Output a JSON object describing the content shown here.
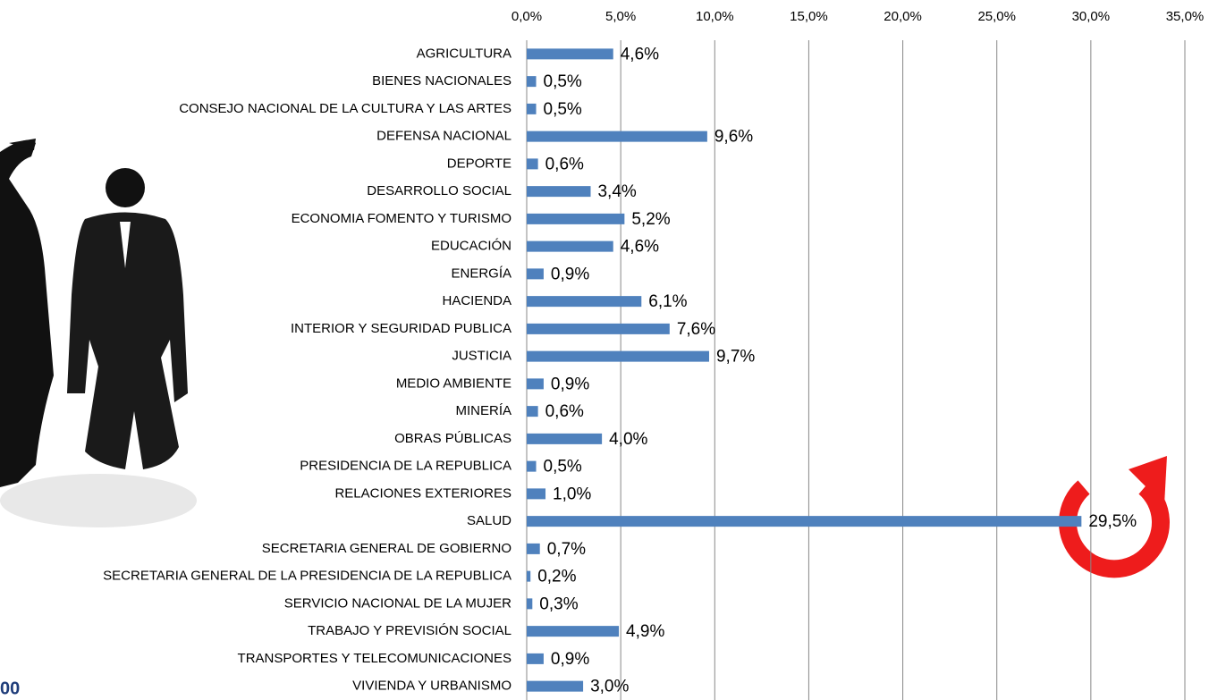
{
  "chart_data": {
    "type": "barh",
    "categories": [
      "AGRICULTURA",
      "BIENES NACIONALES",
      "CONSEJO NACIONAL DE LA CULTURA Y LAS ARTES",
      "DEFENSA NACIONAL",
      "DEPORTE",
      "DESARROLLO SOCIAL",
      "ECONOMIA FOMENTO Y TURISMO",
      "EDUCACIÓN",
      "ENERGÍA",
      "HACIENDA",
      "INTERIOR Y SEGURIDAD PUBLICA",
      "JUSTICIA",
      "MEDIO AMBIENTE",
      "MINERÍA",
      "OBRAS PÚBLICAS",
      "PRESIDENCIA DE LA REPUBLICA",
      "RELACIONES EXTERIORES",
      "SALUD",
      "SECRETARIA GENERAL DE GOBIERNO",
      "SECRETARIA GENERAL DE LA PRESIDENCIA DE LA REPUBLICA",
      "SERVICIO NACIONAL DE LA MUJER",
      "TRABAJO Y PREVISIÓN SOCIAL",
      "TRANSPORTES Y TELECOMUNICACIONES",
      "VIVIENDA Y URBANISMO"
    ],
    "values": [
      4.6,
      0.5,
      0.5,
      9.6,
      0.6,
      3.4,
      5.2,
      4.6,
      0.9,
      6.1,
      7.6,
      9.7,
      0.9,
      0.6,
      4.0,
      0.5,
      1.0,
      29.5,
      0.7,
      0.2,
      0.3,
      4.9,
      0.9,
      3.0
    ],
    "value_labels": [
      "4,6%",
      "0,5%",
      "0,5%",
      "9,6%",
      "0,6%",
      "3,4%",
      "5,2%",
      "4,6%",
      "0,9%",
      "6,1%",
      "7,6%",
      "9,7%",
      "0,9%",
      "0,6%",
      "4,0%",
      "0,5%",
      "1,0%",
      "29,5%",
      "0,7%",
      "0,2%",
      "0,3%",
      "4,9%",
      "0,9%",
      "3,0%"
    ],
    "color": "#4f81bd",
    "xlim": [
      0,
      35
    ],
    "xticks": [
      {
        "value": 0,
        "label": "0,0%"
      },
      {
        "value": 5,
        "label": "5,0%"
      },
      {
        "value": 10,
        "label": "10,0%"
      },
      {
        "value": 15,
        "label": "15,0%"
      },
      {
        "value": 20,
        "label": "20,0%"
      },
      {
        "value": 25,
        "label": "25,0%"
      },
      {
        "value": 30,
        "label": "30,0%"
      },
      {
        "value": 35,
        "label": "35,0%"
      }
    ],
    "grid": true,
    "annotations": [
      "00"
    ]
  }
}
